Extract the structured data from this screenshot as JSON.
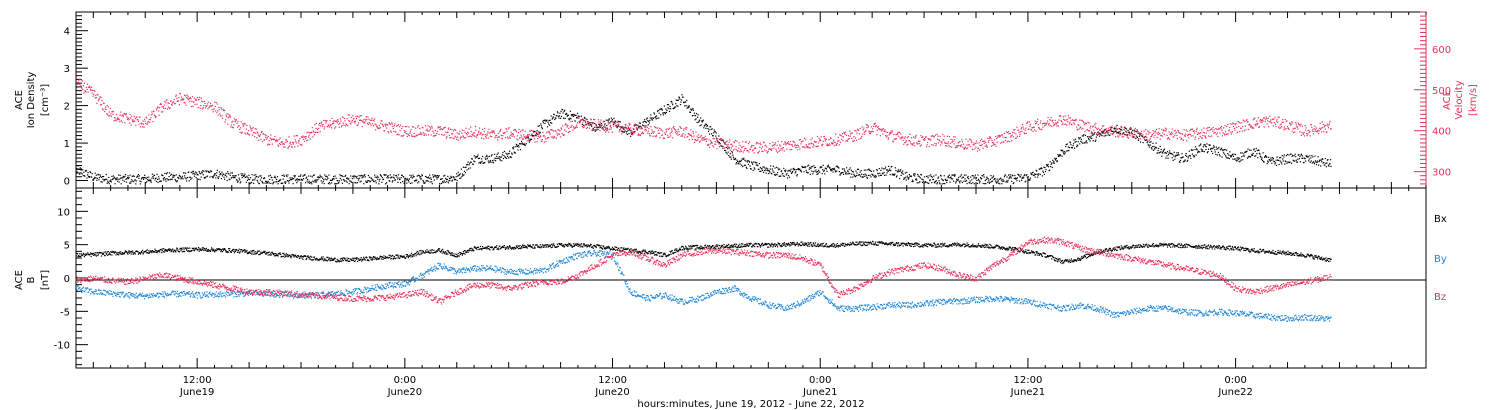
{
  "colors": {
    "black": "#000000",
    "pink": "#e8305a",
    "blue": "#1f86d8"
  },
  "xaxis": {
    "title": "hours:minutes, June 19, 2012 - June 22, 2012",
    "ticks": [
      {
        "h": 12,
        "time": "12:00",
        "day": "June19"
      },
      {
        "h": 24,
        "time": "0:00",
        "day": "June20"
      },
      {
        "h": 36,
        "time": "12:00",
        "day": "June20"
      },
      {
        "h": 48,
        "time": "0:00",
        "day": "June21"
      },
      {
        "h": 60,
        "time": "12:00",
        "day": "June21"
      },
      {
        "h": 72,
        "time": "0:00",
        "day": "June22"
      }
    ]
  },
  "chart_data": [
    {
      "type": "scatter",
      "panel": "top",
      "x_unit": "hours since 2012-06-19 00:00",
      "xlim": [
        5,
        83
      ],
      "left_axis": {
        "label_lines": [
          "ACE",
          "Ion Density"
        ],
        "unit": "[cm⁻³]",
        "ylim": [
          -0.2,
          4.5
        ],
        "ticks": [
          0,
          1,
          2,
          3,
          4
        ],
        "tick_labels": [
          "0",
          "1",
          "2",
          "3",
          "4"
        ]
      },
      "right_axis": {
        "label_lines": [
          "ACE",
          "Velocity"
        ],
        "unit": "[km/s]",
        "ylim": [
          260,
          690
        ],
        "ticks": [
          300,
          400,
          500,
          600
        ],
        "tick_labels": [
          "300",
          "400",
          "500",
          "600"
        ]
      },
      "series": [
        {
          "color": "#000000",
          "axis": "left",
          "x": [
            5,
            6,
            7,
            8,
            9,
            10,
            11,
            12,
            13,
            14,
            15,
            16,
            17,
            18,
            19,
            20,
            21,
            22,
            23,
            24,
            25,
            26,
            27,
            28,
            29,
            30,
            31,
            32,
            33,
            34,
            35,
            36,
            37,
            38,
            39,
            40,
            41,
            42,
            43,
            44,
            45,
            46,
            47,
            48,
            49,
            50,
            51,
            52,
            53,
            54,
            55,
            56,
            57,
            58,
            59,
            60,
            61,
            62,
            63,
            64,
            65,
            66,
            67,
            68,
            69,
            70,
            71,
            72,
            73,
            74,
            75,
            76,
            77,
            78
          ],
          "y": [
            0.3,
            0.1,
            0.05,
            0.05,
            0.05,
            0.1,
            0.1,
            0.15,
            0.2,
            0.1,
            0.05,
            0.05,
            0.05,
            0.05,
            0.05,
            0.05,
            0.05,
            0.05,
            0.05,
            0.05,
            0.05,
            0.05,
            0.1,
            0.6,
            0.6,
            0.7,
            1.1,
            1.5,
            1.8,
            1.7,
            1.4,
            1.6,
            1.3,
            1.6,
            1.9,
            2.2,
            1.6,
            1.2,
            0.6,
            0.4,
            0.3,
            0.2,
            0.3,
            0.3,
            0.3,
            0.2,
            0.2,
            0.3,
            0.1,
            0.05,
            0.05,
            0.05,
            0.05,
            0.05,
            0.05,
            0.1,
            0.3,
            0.8,
            1.1,
            1.2,
            1.4,
            1.3,
            1.0,
            0.7,
            0.6,
            0.9,
            0.8,
            0.6,
            0.8,
            0.5,
            0.6,
            0.6,
            0.5,
            0.4
          ]
        },
        {
          "color": "#e8305a",
          "axis": "right",
          "x": [
            5,
            6,
            7,
            8,
            9,
            10,
            11,
            12,
            13,
            14,
            15,
            16,
            17,
            18,
            19,
            20,
            21,
            22,
            23,
            24,
            25,
            26,
            27,
            28,
            29,
            30,
            31,
            32,
            33,
            34,
            35,
            36,
            37,
            38,
            39,
            40,
            41,
            42,
            43,
            44,
            45,
            46,
            47,
            48,
            49,
            50,
            51,
            52,
            53,
            54,
            55,
            56,
            57,
            58,
            59,
            60,
            61,
            62,
            63,
            64,
            65,
            66,
            67,
            68,
            69,
            70,
            71,
            72,
            73,
            74,
            75,
            76,
            77,
            78
          ],
          "y": [
            520,
            490,
            440,
            430,
            420,
            460,
            480,
            470,
            460,
            420,
            400,
            380,
            370,
            380,
            410,
            420,
            430,
            420,
            410,
            400,
            400,
            400,
            390,
            400,
            390,
            395,
            390,
            385,
            400,
            420,
            415,
            410,
            405,
            400,
            395,
            400,
            380,
            370,
            365,
            360,
            360,
            365,
            370,
            375,
            380,
            390,
            410,
            390,
            380,
            375,
            380,
            370,
            365,
            375,
            390,
            410,
            420,
            430,
            415,
            405,
            400,
            395,
            390,
            395,
            390,
            395,
            400,
            410,
            420,
            425,
            415,
            400,
            410,
            415
          ]
        }
      ]
    },
    {
      "type": "scatter",
      "panel": "bottom",
      "x_unit": "hours since 2012-06-19 00:00",
      "xlim": [
        5,
        83
      ],
      "left_axis": {
        "label_lines": [
          "ACE",
          "B"
        ],
        "unit": "[nT]",
        "ylim": [
          -13.5,
          13.5
        ],
        "ticks": [
          -10,
          -5,
          0,
          5,
          10
        ],
        "tick_labels": [
          "-10",
          "-5",
          "0",
          "5",
          "10"
        ]
      },
      "series": [
        {
          "name": "Bx",
          "color": "#000000",
          "x": [
            5,
            6,
            7,
            8,
            9,
            10,
            11,
            12,
            13,
            14,
            15,
            16,
            17,
            18,
            19,
            20,
            21,
            22,
            23,
            24,
            25,
            26,
            27,
            28,
            29,
            30,
            31,
            32,
            33,
            34,
            35,
            36,
            37,
            38,
            39,
            40,
            41,
            42,
            43,
            44,
            45,
            46,
            47,
            48,
            49,
            50,
            51,
            52,
            53,
            54,
            55,
            56,
            57,
            58,
            59,
            60,
            61,
            62,
            63,
            64,
            65,
            66,
            67,
            68,
            69,
            70,
            71,
            72,
            73,
            74,
            75,
            76,
            77,
            78
          ],
          "y": [
            3.5,
            3.6,
            3.8,
            3.9,
            4.0,
            4.2,
            4.3,
            4.4,
            4.3,
            4.2,
            4.0,
            3.8,
            3.5,
            3.2,
            3.0,
            2.8,
            2.8,
            3.0,
            3.2,
            3.3,
            4.0,
            4.2,
            3.5,
            4.5,
            4.6,
            4.7,
            4.8,
            4.8,
            5.0,
            5.0,
            4.8,
            4.5,
            4.2,
            4.0,
            3.5,
            4.6,
            4.7,
            4.8,
            4.9,
            5.0,
            5.0,
            5.1,
            5.2,
            5.0,
            5.0,
            5.2,
            5.3,
            5.2,
            5.1,
            5.0,
            5.0,
            5.1,
            5.0,
            4.8,
            4.5,
            4.0,
            3.5,
            2.5,
            3.0,
            4.0,
            4.5,
            4.8,
            5.0,
            5.0,
            4.9,
            4.8,
            4.7,
            4.5,
            4.2,
            4.0,
            3.8,
            3.5,
            3.0,
            2.5
          ]
        },
        {
          "name": "By",
          "color": "#1f86d8",
          "x": [
            5,
            6,
            7,
            8,
            9,
            10,
            11,
            12,
            13,
            14,
            15,
            16,
            17,
            18,
            19,
            20,
            21,
            22,
            23,
            24,
            25,
            26,
            27,
            28,
            29,
            30,
            31,
            32,
            33,
            34,
            35,
            36,
            37,
            38,
            39,
            40,
            41,
            42,
            43,
            44,
            45,
            46,
            47,
            48,
            49,
            50,
            51,
            52,
            53,
            54,
            55,
            56,
            57,
            58,
            59,
            60,
            61,
            62,
            63,
            64,
            65,
            66,
            67,
            68,
            69,
            70,
            71,
            72,
            73,
            74,
            75,
            76,
            77,
            78
          ],
          "y": [
            -1.5,
            -2.0,
            -2.2,
            -2.5,
            -2.6,
            -2.4,
            -2.3,
            -2.5,
            -2.4,
            -2.3,
            -2.2,
            -2.3,
            -2.4,
            -2.6,
            -2.5,
            -2.3,
            -2.0,
            -1.5,
            -1.0,
            -0.8,
            0.5,
            2.0,
            1.0,
            1.5,
            1.5,
            1.0,
            1.0,
            1.2,
            2.5,
            3.5,
            3.8,
            3.5,
            -2.0,
            -3.0,
            -2.5,
            -3.5,
            -3.0,
            -2.0,
            -1.5,
            -3.0,
            -4.0,
            -4.5,
            -3.5,
            -2.0,
            -4.5,
            -4.5,
            -4.3,
            -4.0,
            -4.0,
            -3.8,
            -3.5,
            -3.4,
            -3.2,
            -3.0,
            -3.2,
            -3.5,
            -4.0,
            -4.5,
            -4.0,
            -4.5,
            -5.5,
            -5.0,
            -4.5,
            -4.5,
            -5.0,
            -5.2,
            -5.0,
            -5.2,
            -5.5,
            -5.8,
            -6.0,
            -5.8,
            -6.0,
            -6.2
          ]
        },
        {
          "name": "Bz",
          "color": "#e8305a",
          "x": [
            5,
            6,
            7,
            8,
            9,
            10,
            11,
            12,
            13,
            14,
            15,
            16,
            17,
            18,
            19,
            20,
            21,
            22,
            23,
            24,
            25,
            26,
            27,
            28,
            29,
            30,
            31,
            32,
            33,
            34,
            35,
            36,
            37,
            38,
            39,
            40,
            41,
            42,
            43,
            44,
            45,
            46,
            47,
            48,
            49,
            50,
            51,
            52,
            53,
            54,
            55,
            56,
            57,
            58,
            59,
            60,
            61,
            62,
            63,
            64,
            65,
            66,
            67,
            68,
            69,
            70,
            71,
            72,
            73,
            74,
            75,
            76,
            77,
            78
          ],
          "y": [
            -0.2,
            0.0,
            -0.3,
            -0.5,
            0.0,
            0.5,
            0.0,
            -0.5,
            -1.0,
            -1.5,
            -2.0,
            -2.0,
            -2.2,
            -2.4,
            -2.6,
            -2.8,
            -3.0,
            -3.0,
            -2.8,
            -2.5,
            -2.0,
            -3.5,
            -2.0,
            -1.0,
            -1.0,
            -1.5,
            -1.0,
            -0.5,
            -0.5,
            0.5,
            2.0,
            3.5,
            4.0,
            3.0,
            2.0,
            3.5,
            4.0,
            4.2,
            4.0,
            3.8,
            3.5,
            3.5,
            3.0,
            2.0,
            -2.5,
            -1.5,
            0.0,
            1.0,
            1.5,
            2.0,
            1.5,
            0.5,
            0.0,
            2.0,
            3.5,
            5.5,
            5.8,
            5.5,
            4.5,
            4.0,
            3.5,
            3.0,
            2.5,
            2.0,
            1.5,
            1.0,
            0.5,
            -1.5,
            -2.0,
            -1.5,
            -1.0,
            -0.5,
            0.0,
            0.5
          ]
        }
      ]
    }
  ]
}
